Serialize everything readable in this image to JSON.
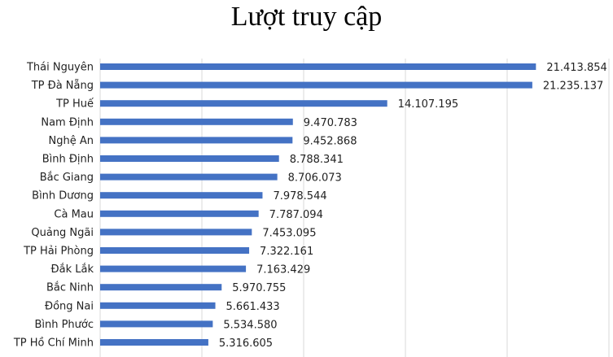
{
  "chart_data": {
    "type": "bar",
    "orientation": "horizontal",
    "title": "Lượt truy cập",
    "categories": [
      "Thái Nguyên",
      "TP Đà Nẵng",
      "TP Huế",
      "Nam Định",
      "Nghệ An",
      "Bình Định",
      "Bắc Giang",
      "Bình Dương",
      "Cà Mau",
      "Quảng Ngãi",
      "TP Hải Phòng",
      "Đắk Lắk",
      "Bắc Ninh",
      "Đồng Nai",
      "Bình Phước",
      "TP Hồ Chí Minh"
    ],
    "values": [
      21413854,
      21235137,
      14107195,
      9470783,
      9452868,
      8788341,
      8706073,
      7978544,
      7787094,
      7453095,
      7322161,
      7163429,
      5970755,
      5661433,
      5534580,
      5316605
    ],
    "value_labels": [
      "21.413.854",
      "21.235.137",
      "14.107.195",
      "9.470.783",
      "9.452.868",
      "8.788.341",
      "8.706.073",
      "7.978.544",
      "7.787.094",
      "7.453.095",
      "7.322.161",
      "7.163.429",
      "5.970.755",
      "5.661.433",
      "5.534.580",
      "5.316.605"
    ],
    "xlim": [
      0,
      25000000
    ],
    "grid": true,
    "legend": "none",
    "bar_color": "#4472C4",
    "grid_color": "#d9d9d9"
  }
}
